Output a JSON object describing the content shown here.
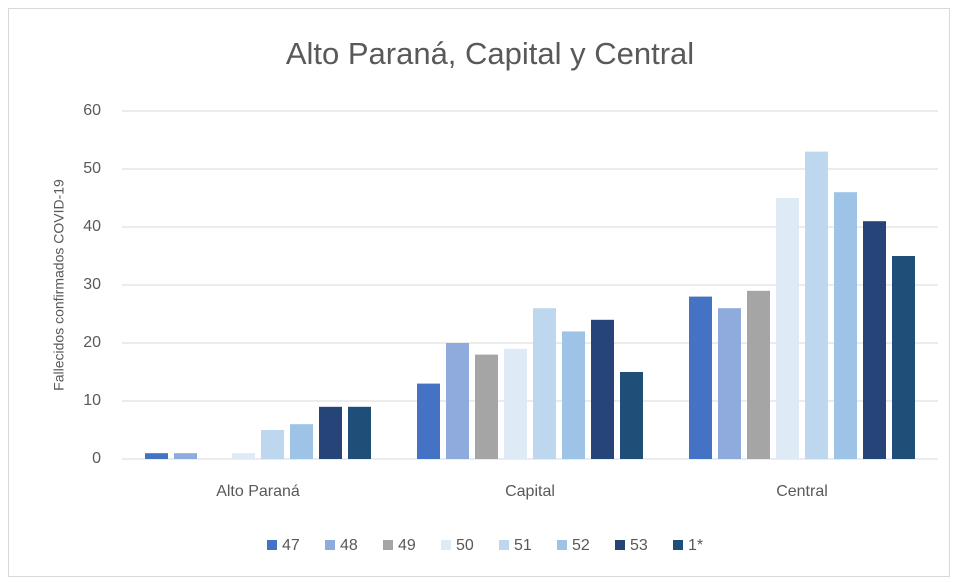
{
  "chart_data": {
    "type": "bar",
    "title": "Alto Paraná, Capital y Central",
    "y_label": "Fallecidos confirmados COVID-19",
    "categories": [
      "Alto Paraná",
      "Capital",
      "Central"
    ],
    "series": [
      {
        "name": "47",
        "color": "#4472c4",
        "values": [
          1,
          13,
          28
        ]
      },
      {
        "name": "48",
        "color": "#8faadc",
        "values": [
          1,
          20,
          26
        ]
      },
      {
        "name": "49",
        "color": "#a5a5a5",
        "values": [
          0,
          18,
          29
        ]
      },
      {
        "name": "50",
        "color": "#deebf7",
        "values": [
          1,
          19,
          45
        ]
      },
      {
        "name": "51",
        "color": "#bdd7ee",
        "values": [
          5,
          26,
          53
        ]
      },
      {
        "name": "52",
        "color": "#9dc3e6",
        "values": [
          6,
          22,
          46
        ]
      },
      {
        "name": "53",
        "color": "#264478",
        "values": [
          9,
          24,
          41
        ]
      },
      {
        "name": "1*",
        "color": "#1f4e79",
        "values": [
          9,
          15,
          35
        ]
      }
    ],
    "ylim": [
      0,
      60
    ],
    "yticks": [
      0,
      10,
      20,
      30,
      40,
      50,
      60
    ],
    "grid": true,
    "legend": "bottom"
  }
}
